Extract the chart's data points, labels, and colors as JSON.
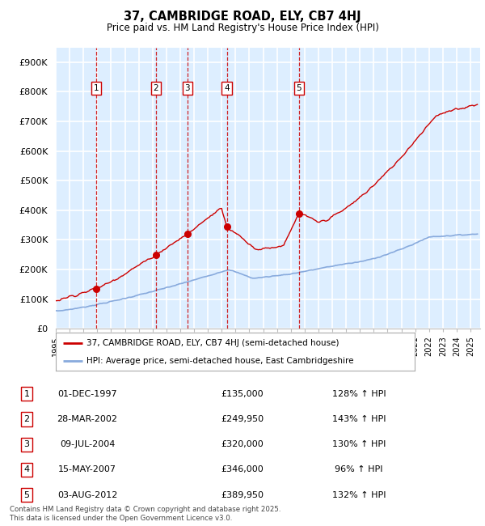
{
  "title": "37, CAMBRIDGE ROAD, ELY, CB7 4HJ",
  "subtitle": "Price paid vs. HM Land Registry's House Price Index (HPI)",
  "ylabel_ticks": [
    "£0",
    "£100K",
    "£200K",
    "£300K",
    "£400K",
    "£500K",
    "£600K",
    "£700K",
    "£800K",
    "£900K"
  ],
  "ytick_values": [
    0,
    100000,
    200000,
    300000,
    400000,
    500000,
    600000,
    700000,
    800000,
    900000
  ],
  "ylim": [
    0,
    950000
  ],
  "xlim_start": 1995.0,
  "xlim_end": 2025.7,
  "sale_dates_decimal": [
    1997.92,
    2002.24,
    2004.52,
    2007.37,
    2012.59
  ],
  "sale_prices": [
    135000,
    249950,
    320000,
    346000,
    389950
  ],
  "sale_labels": [
    "1",
    "2",
    "3",
    "4",
    "5"
  ],
  "legend_property": "37, CAMBRIDGE ROAD, ELY, CB7 4HJ (semi-detached house)",
  "legend_hpi": "HPI: Average price, semi-detached house, East Cambridgeshire",
  "table_data": [
    [
      "1",
      "01-DEC-1997",
      "£135,000",
      "128% ↑ HPI"
    ],
    [
      "2",
      "28-MAR-2002",
      "£249,950",
      "143% ↑ HPI"
    ],
    [
      "3",
      "09-JUL-2004",
      "£320,000",
      "130% ↑ HPI"
    ],
    [
      "4",
      "15-MAY-2007",
      "£346,000",
      "96% ↑ HPI"
    ],
    [
      "5",
      "03-AUG-2012",
      "£389,950",
      "132% ↑ HPI"
    ]
  ],
  "footer": "Contains HM Land Registry data © Crown copyright and database right 2025.\nThis data is licensed under the Open Government Licence v3.0.",
  "property_line_color": "#cc0000",
  "hpi_line_color": "#88aadd",
  "sale_dot_color": "#cc0000",
  "vline_color": "#cc0000",
  "box_color": "#cc0000",
  "background_color": "#ddeeff",
  "grid_color": "#ffffff"
}
